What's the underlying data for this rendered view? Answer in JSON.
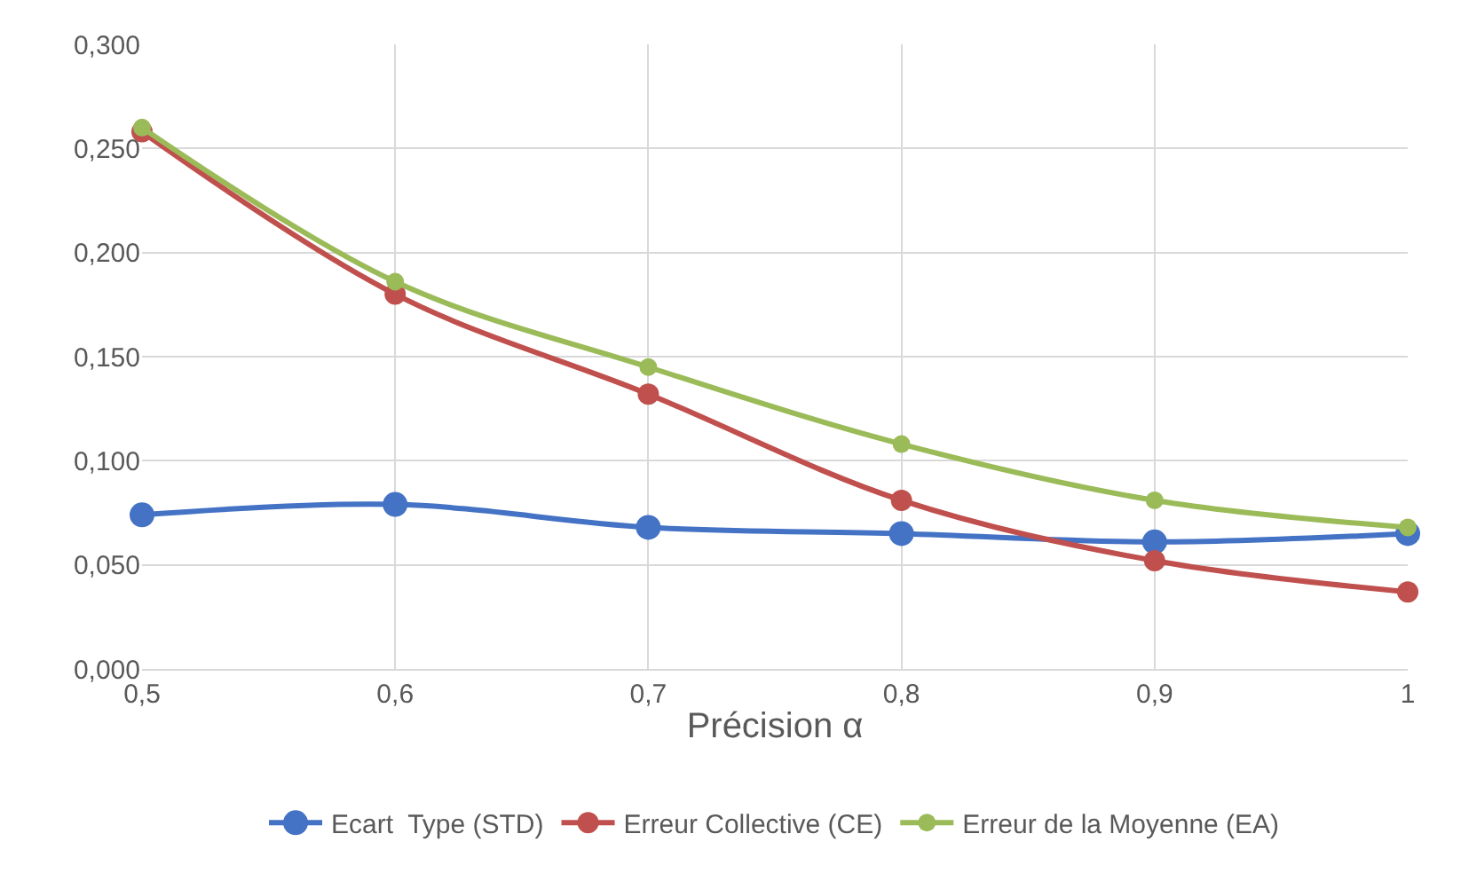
{
  "chart_data": {
    "type": "line",
    "xlabel": "Précision α",
    "x": [
      0.5,
      0.6,
      0.7,
      0.8,
      0.9,
      1
    ],
    "series": [
      {
        "name": "Ecart  Type (STD)",
        "color": "#4472c4",
        "values": [
          0.074,
          0.079,
          0.068,
          0.065,
          0.061,
          0.065
        ]
      },
      {
        "name": "Erreur Collective (CE)",
        "color": "#c0504d",
        "values": [
          0.258,
          0.18,
          0.132,
          0.081,
          0.052,
          0.037
        ]
      },
      {
        "name": "Erreur de la Moyenne (EA)",
        "color": "#9bbb59",
        "values": [
          0.26,
          0.186,
          0.145,
          0.108,
          0.081,
          0.068
        ]
      }
    ],
    "xlim": [
      0.5,
      1
    ],
    "xticks": [
      {
        "value": 0.5,
        "label": "0,5"
      },
      {
        "value": 0.6,
        "label": "0,6"
      },
      {
        "value": 0.7,
        "label": "0,7"
      },
      {
        "value": 0.8,
        "label": "0,8"
      },
      {
        "value": 0.9,
        "label": "0,9"
      },
      {
        "value": 1,
        "label": "1"
      }
    ],
    "ylim": [
      0,
      0.3
    ],
    "yticks": [
      {
        "value": 0,
        "label": "0,000"
      },
      {
        "value": 0.05,
        "label": "0,050"
      },
      {
        "value": 0.1,
        "label": "0,100"
      },
      {
        "value": 0.15,
        "label": "0,150"
      },
      {
        "value": 0.2,
        "label": "0,200"
      },
      {
        "value": 0.25,
        "label": "0,250"
      },
      {
        "value": 0.3,
        "label": "0,300"
      }
    ],
    "grid": true,
    "legend": "bottom",
    "marker": "circle",
    "line_style": "solid"
  }
}
